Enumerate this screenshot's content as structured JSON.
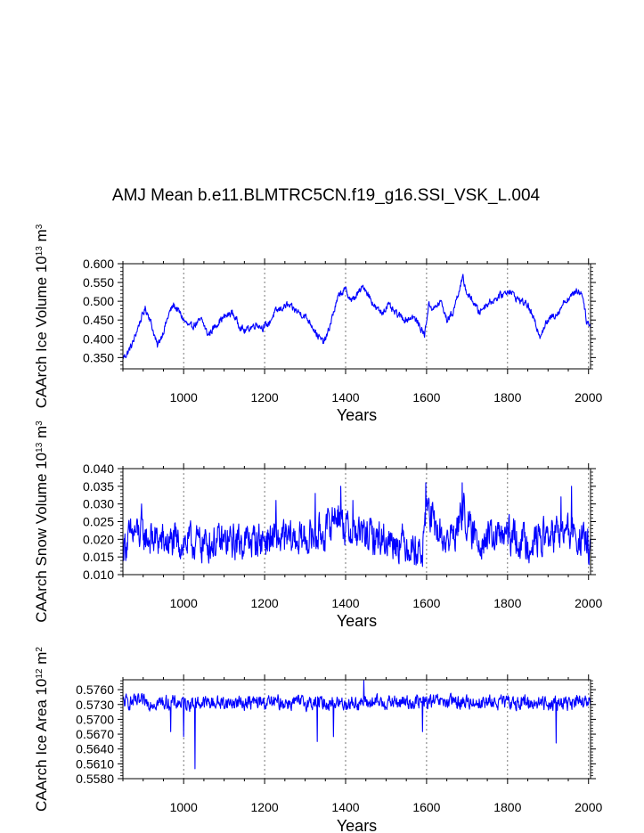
{
  "title": "AMJ Mean b.e11.BLMTRC5CN.f19_g16.SSI_VSK_L.004",
  "colors": {
    "series": "#0000ff",
    "axes": "#000000",
    "grid": "#555555"
  },
  "chart_data": [
    {
      "type": "line",
      "xlabel": "Years",
      "ylabel_parts": [
        "CAArch Ice Volume 10",
        "13",
        " m",
        "3"
      ],
      "xlim": [
        850,
        2005
      ],
      "ylim": [
        0.32,
        0.6
      ],
      "xticks": [
        1000,
        1200,
        1400,
        1600,
        1800,
        2000
      ],
      "xtick_labels": [
        "1000",
        "1200",
        "1400",
        "1600",
        "1800",
        "2000"
      ],
      "yticks": [
        0.35,
        0.4,
        0.45,
        0.5,
        0.55,
        0.6
      ],
      "ytick_labels": [
        "0.350",
        "0.400",
        "0.450",
        "0.500",
        "0.550",
        "0.600"
      ],
      "grid": "vertical dashed at major x ticks",
      "series": [
        {
          "name": "CAArch Ice Volume",
          "keypoints": [
            [
              850,
              0.35
            ],
            [
              860,
              0.36
            ],
            [
              875,
              0.39
            ],
            [
              890,
              0.44
            ],
            [
              905,
              0.48
            ],
            [
              915,
              0.46
            ],
            [
              925,
              0.42
            ],
            [
              935,
              0.38
            ],
            [
              950,
              0.42
            ],
            [
              965,
              0.47
            ],
            [
              975,
              0.49
            ],
            [
              990,
              0.47
            ],
            [
              1000,
              0.45
            ],
            [
              1015,
              0.43
            ],
            [
              1030,
              0.44
            ],
            [
              1045,
              0.45
            ],
            [
              1060,
              0.41
            ],
            [
              1075,
              0.43
            ],
            [
              1090,
              0.45
            ],
            [
              1105,
              0.46
            ],
            [
              1120,
              0.47
            ],
            [
              1135,
              0.44
            ],
            [
              1150,
              0.42
            ],
            [
              1165,
              0.43
            ],
            [
              1180,
              0.44
            ],
            [
              1195,
              0.43
            ],
            [
              1210,
              0.44
            ],
            [
              1225,
              0.47
            ],
            [
              1240,
              0.48
            ],
            [
              1255,
              0.49
            ],
            [
              1270,
              0.48
            ],
            [
              1285,
              0.47
            ],
            [
              1300,
              0.46
            ],
            [
              1315,
              0.44
            ],
            [
              1330,
              0.41
            ],
            [
              1345,
              0.39
            ],
            [
              1355,
              0.41
            ],
            [
              1370,
              0.47
            ],
            [
              1385,
              0.52
            ],
            [
              1400,
              0.53
            ],
            [
              1415,
              0.5
            ],
            [
              1430,
              0.52
            ],
            [
              1445,
              0.54
            ],
            [
              1460,
              0.51
            ],
            [
              1475,
              0.48
            ],
            [
              1490,
              0.47
            ],
            [
              1505,
              0.49
            ],
            [
              1520,
              0.47
            ],
            [
              1535,
              0.46
            ],
            [
              1550,
              0.45
            ],
            [
              1565,
              0.46
            ],
            [
              1580,
              0.44
            ],
            [
              1595,
              0.41
            ],
            [
              1605,
              0.49
            ],
            [
              1620,
              0.48
            ],
            [
              1635,
              0.5
            ],
            [
              1650,
              0.45
            ],
            [
              1665,
              0.47
            ],
            [
              1680,
              0.53
            ],
            [
              1690,
              0.56
            ],
            [
              1700,
              0.52
            ],
            [
              1715,
              0.5
            ],
            [
              1730,
              0.47
            ],
            [
              1745,
              0.49
            ],
            [
              1760,
              0.5
            ],
            [
              1775,
              0.51
            ],
            [
              1790,
              0.52
            ],
            [
              1805,
              0.53
            ],
            [
              1820,
              0.51
            ],
            [
              1835,
              0.5
            ],
            [
              1850,
              0.49
            ],
            [
              1865,
              0.45
            ],
            [
              1880,
              0.41
            ],
            [
              1895,
              0.44
            ],
            [
              1910,
              0.46
            ],
            [
              1925,
              0.47
            ],
            [
              1940,
              0.5
            ],
            [
              1955,
              0.51
            ],
            [
              1970,
              0.53
            ],
            [
              1985,
              0.52
            ],
            [
              1995,
              0.45
            ],
            [
              2005,
              0.43
            ]
          ],
          "noise": 0.008,
          "spikes": []
        }
      ]
    },
    {
      "type": "line",
      "xlabel": "Years",
      "ylabel_parts": [
        "CAArch Snow Volume 10",
        "13",
        " m",
        "3"
      ],
      "xlim": [
        850,
        2005
      ],
      "ylim": [
        0.01,
        0.04
      ],
      "xticks": [
        1000,
        1200,
        1400,
        1600,
        1800,
        2000
      ],
      "xtick_labels": [
        "1000",
        "1200",
        "1400",
        "1600",
        "1800",
        "2000"
      ],
      "yticks": [
        0.01,
        0.015,
        0.02,
        0.025,
        0.03,
        0.035,
        0.04
      ],
      "ytick_labels": [
        "0.010",
        "0.015",
        "0.020",
        "0.025",
        "0.030",
        "0.035",
        "0.040"
      ],
      "grid": "vertical dashed at major x ticks",
      "series": [
        {
          "name": "CAArch Snow Volume",
          "keypoints": [
            [
              850,
              0.018
            ],
            [
              880,
              0.022
            ],
            [
              900,
              0.021
            ],
            [
              920,
              0.02
            ],
            [
              960,
              0.019
            ],
            [
              1000,
              0.019
            ],
            [
              1100,
              0.019
            ],
            [
              1200,
              0.02
            ],
            [
              1300,
              0.02
            ],
            [
              1350,
              0.022
            ],
            [
              1380,
              0.028
            ],
            [
              1400,
              0.023
            ],
            [
              1450,
              0.021
            ],
            [
              1500,
              0.02
            ],
            [
              1550,
              0.019
            ],
            [
              1590,
              0.016
            ],
            [
              1600,
              0.03
            ],
            [
              1620,
              0.023
            ],
            [
              1650,
              0.019
            ],
            [
              1680,
              0.024
            ],
            [
              1690,
              0.029
            ],
            [
              1710,
              0.021
            ],
            [
              1750,
              0.02
            ],
            [
              1800,
              0.021
            ],
            [
              1850,
              0.019
            ],
            [
              1900,
              0.021
            ],
            [
              1950,
              0.022
            ],
            [
              2005,
              0.018
            ]
          ],
          "noise": 0.0042,
          "spikes": [
            [
              1598,
              0.036
            ],
            [
              1688,
              0.036
            ],
            [
              1388,
              0.035
            ],
            [
              1958,
              0.035
            ],
            [
              896,
              0.03
            ],
            [
              1325,
              0.033
            ],
            [
              1418,
              0.031
            ],
            [
              1932,
              0.032
            ],
            [
              1228,
              0.031
            ]
          ]
        }
      ]
    },
    {
      "type": "line",
      "xlabel": "Years",
      "ylabel_parts": [
        "CAArch Ice Area 10",
        "12",
        " m",
        "2"
      ],
      "xlim": [
        850,
        2005
      ],
      "ylim": [
        0.558,
        0.578
      ],
      "xticks": [
        1000,
        1200,
        1400,
        1600,
        1800,
        2000
      ],
      "xtick_labels": [
        "1000",
        "1200",
        "1400",
        "1600",
        "1800",
        "2000"
      ],
      "yticks": [
        0.558,
        0.561,
        0.564,
        0.567,
        0.57,
        0.573,
        0.576
      ],
      "ytick_labels": [
        "0.5580",
        "0.5610",
        "0.5640",
        "0.5670",
        "0.5700",
        "0.5730",
        "0.5760"
      ],
      "grid": "vertical dashed at major x ticks",
      "series": [
        {
          "name": "CAArch Ice Area",
          "keypoints": [
            [
              850,
              0.5735
            ],
            [
              1000,
              0.5733
            ],
            [
              1200,
              0.5734
            ],
            [
              1400,
              0.5733
            ],
            [
              1600,
              0.5735
            ],
            [
              1800,
              0.5734
            ],
            [
              2005,
              0.5733
            ]
          ],
          "noise": 0.0012,
          "spikes": [
            [
              1028,
              0.56
            ],
            [
              1000,
              0.5665
            ],
            [
              968,
              0.5675
            ],
            [
              1330,
              0.5655
            ],
            [
              1920,
              0.5652
            ],
            [
              1445,
              0.5778
            ],
            [
              1370,
              0.5665
            ],
            [
              1590,
              0.5675
            ]
          ]
        }
      ]
    }
  ]
}
